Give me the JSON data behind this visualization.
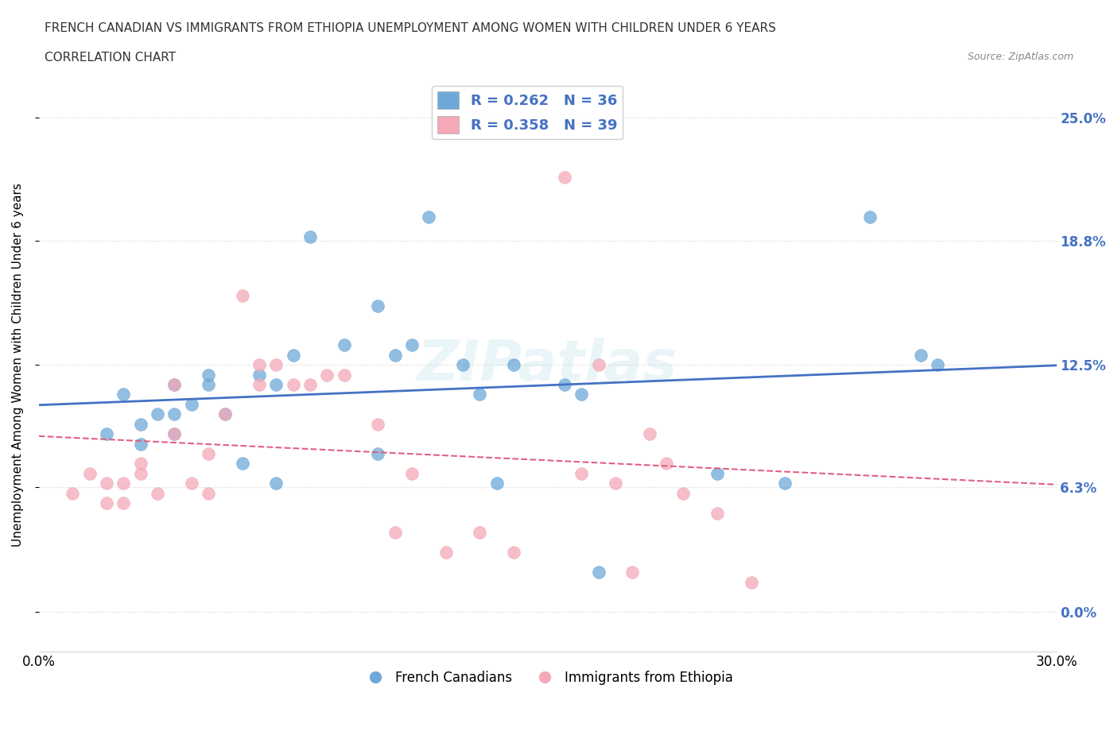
{
  "title_line1": "FRENCH CANADIAN VS IMMIGRANTS FROM ETHIOPIA UNEMPLOYMENT AMONG WOMEN WITH CHILDREN UNDER 6 YEARS",
  "title_line2": "CORRELATION CHART",
  "source": "Source: ZipAtlas.com",
  "ylabel": "Unemployment Among Women with Children Under 6 years",
  "xlim": [
    0.0,
    0.3
  ],
  "ylim": [
    -0.02,
    0.27
  ],
  "yticks": [
    0.0,
    0.063,
    0.125,
    0.188,
    0.25
  ],
  "ytick_labels": [
    "0.0%",
    "6.3%",
    "12.5%",
    "18.8%",
    "25.0%"
  ],
  "xticks": [
    0.0,
    0.05,
    0.1,
    0.15,
    0.2,
    0.25,
    0.3
  ],
  "xtick_labels": [
    "0.0%",
    "",
    "",
    "",
    "",
    "",
    "30.0%"
  ],
  "blue_color": "#6ea8d8",
  "pink_color": "#f4a8b8",
  "blue_line_color": "#4472c4",
  "pink_line_color": "#e06080",
  "watermark": "ZIPatlas",
  "legend_r1": "R = 0.262   N = 36",
  "legend_r2": "R = 0.358   N = 39",
  "legend_label1": "French Canadians",
  "legend_label2": "Immigrants from Ethiopia",
  "blue_scatter_x": [
    0.02,
    0.025,
    0.03,
    0.03,
    0.035,
    0.04,
    0.04,
    0.04,
    0.045,
    0.05,
    0.05,
    0.055,
    0.06,
    0.065,
    0.07,
    0.07,
    0.075,
    0.08,
    0.09,
    0.1,
    0.1,
    0.105,
    0.11,
    0.115,
    0.125,
    0.13,
    0.135,
    0.14,
    0.155,
    0.16,
    0.165,
    0.2,
    0.22,
    0.245,
    0.26,
    0.265
  ],
  "blue_scatter_y": [
    0.09,
    0.11,
    0.085,
    0.095,
    0.1,
    0.09,
    0.1,
    0.115,
    0.105,
    0.115,
    0.12,
    0.1,
    0.075,
    0.12,
    0.065,
    0.115,
    0.13,
    0.19,
    0.135,
    0.08,
    0.155,
    0.13,
    0.135,
    0.2,
    0.125,
    0.11,
    0.065,
    0.125,
    0.115,
    0.11,
    0.02,
    0.07,
    0.065,
    0.2,
    0.13,
    0.125
  ],
  "pink_scatter_x": [
    0.01,
    0.015,
    0.02,
    0.02,
    0.025,
    0.025,
    0.03,
    0.03,
    0.035,
    0.04,
    0.04,
    0.045,
    0.05,
    0.05,
    0.055,
    0.06,
    0.065,
    0.065,
    0.07,
    0.075,
    0.08,
    0.085,
    0.09,
    0.1,
    0.105,
    0.11,
    0.12,
    0.13,
    0.14,
    0.155,
    0.16,
    0.165,
    0.17,
    0.175,
    0.18,
    0.185,
    0.19,
    0.2,
    0.21
  ],
  "pink_scatter_y": [
    0.06,
    0.07,
    0.055,
    0.065,
    0.055,
    0.065,
    0.07,
    0.075,
    0.06,
    0.09,
    0.115,
    0.065,
    0.08,
    0.06,
    0.1,
    0.16,
    0.115,
    0.125,
    0.125,
    0.115,
    0.115,
    0.12,
    0.12,
    0.095,
    0.04,
    0.07,
    0.03,
    0.04,
    0.03,
    0.22,
    0.07,
    0.125,
    0.065,
    0.02,
    0.09,
    0.075,
    0.06,
    0.05,
    0.015
  ]
}
